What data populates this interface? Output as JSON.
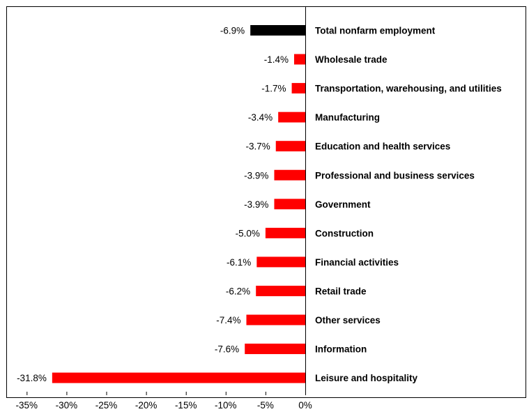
{
  "chart_data": {
    "type": "bar",
    "orientation": "horizontal",
    "categories": [
      "Total nonfarm employment",
      "Wholesale trade",
      "Transportation, warehousing, and utilities",
      "Manufacturing",
      "Education and health services",
      "Professional and business services",
      "Government",
      "Construction",
      "Financial activities",
      "Retail trade",
      "Other services",
      "Information",
      "Leisure and hospitality"
    ],
    "values": [
      -6.9,
      -1.4,
      -1.7,
      -3.4,
      -3.7,
      -3.9,
      -3.9,
      -5.0,
      -6.1,
      -6.2,
      -7.4,
      -7.6,
      -31.8
    ],
    "value_labels": [
      "-6.9%",
      "-1.4%",
      "-1.7%",
      "-3.4%",
      "-3.7%",
      "-3.9%",
      "-3.9%",
      "-5.0%",
      "-6.1%",
      "-6.2%",
      "-7.4%",
      "-7.6%",
      "-31.8%"
    ],
    "bar_colors": [
      "#000000",
      "#ff0000",
      "#ff0000",
      "#ff0000",
      "#ff0000",
      "#ff0000",
      "#ff0000",
      "#ff0000",
      "#ff0000",
      "#ff0000",
      "#ff0000",
      "#ff0000",
      "#ff0000"
    ],
    "xlim": [
      -35,
      0
    ],
    "xticks": [
      -35,
      -30,
      -25,
      -20,
      -15,
      -10,
      -5,
      0
    ],
    "xtick_labels": [
      "-35%",
      "-30%",
      "-25%",
      "-20%",
      "-15%",
      "-10%",
      "-5%",
      "0%"
    ],
    "title": "",
    "xlabel": "",
    "ylabel": "",
    "grid": false,
    "legend": "none"
  }
}
